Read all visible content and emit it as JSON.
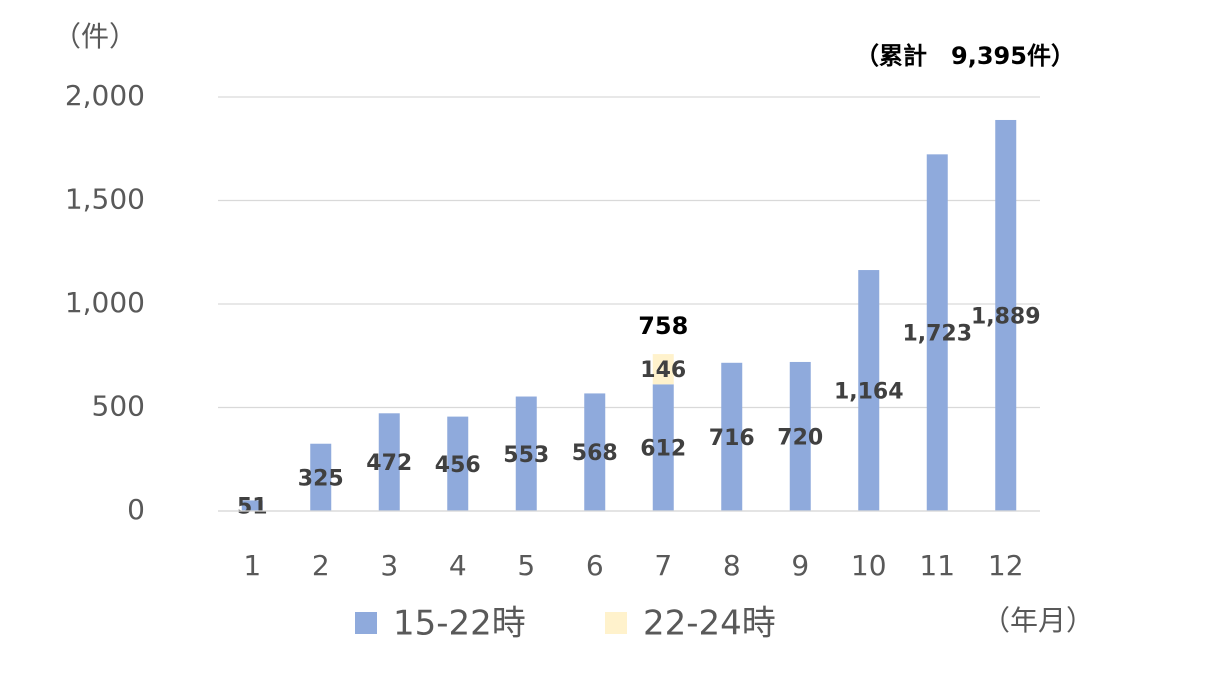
{
  "chart_data": {
    "type": "stacked_bar",
    "y_label": "（件）",
    "x_label": "（年月）",
    "note": "（累計　9,395件）",
    "categories": [
      "1",
      "2",
      "3",
      "4",
      "5",
      "6",
      "7",
      "8",
      "9",
      "10",
      "11",
      "12"
    ],
    "series": [
      {
        "name": "15-22時",
        "color": "#8faadc",
        "values": [
          51,
          325,
          472,
          456,
          553,
          568,
          612,
          716,
          720,
          1164,
          1723,
          1889
        ],
        "value_labels": [
          "51",
          "325",
          "472",
          "456",
          "553",
          "568",
          "612",
          "716",
          "720",
          "1,164",
          "1,723",
          "1,889"
        ]
      },
      {
        "name": "22-24時",
        "color": "#fff2cc",
        "values": [
          null,
          null,
          null,
          null,
          null,
          null,
          146,
          null,
          null,
          null,
          null,
          null
        ]
      }
    ],
    "stack_totals": [
      null,
      null,
      null,
      null,
      null,
      null,
      758,
      null,
      null,
      null,
      null,
      null
    ],
    "ylim": [
      0,
      2000
    ],
    "yticks": [
      0,
      500,
      {
        "value": 1000,
        "label": "1,000"
      },
      {
        "value": 1500,
        "label": "1,500"
      },
      {
        "value": 2000,
        "label": "2,000"
      }
    ],
    "grid": true
  }
}
